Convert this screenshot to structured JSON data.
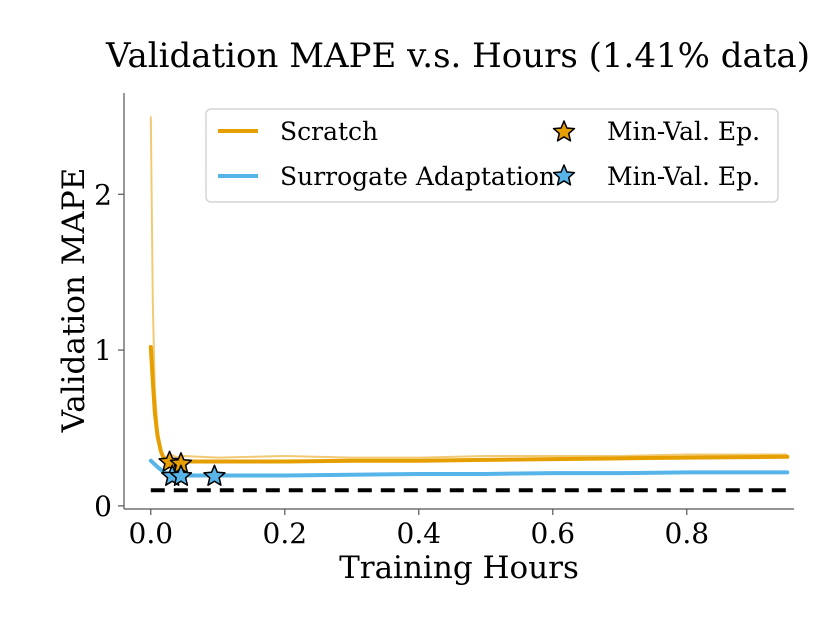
{
  "chart_data": {
    "type": "line",
    "title": "Validation MAPE v.s. Hours (1.41% data)",
    "xlabel": "Training Hours",
    "ylabel": "Validation MAPE",
    "xlim": [
      -0.04,
      0.96
    ],
    "ylim": [
      -0.02,
      2.65
    ],
    "xticks": [
      0.0,
      0.2,
      0.4,
      0.6,
      0.8
    ],
    "xtick_labels": [
      "0.0",
      "0.2",
      "0.4",
      "0.6",
      "0.8"
    ],
    "yticks": [
      0,
      1,
      2
    ],
    "ytick_labels": [
      "0",
      "1",
      "2"
    ],
    "grid": false,
    "legend_position": "top-right",
    "series": [
      {
        "name": "Scratch",
        "color": "#E69F00",
        "raw_points": [
          [
            0.0,
            2.5
          ],
          [
            0.003,
            1.3
          ],
          [
            0.006,
            0.75
          ],
          [
            0.01,
            0.5
          ],
          [
            0.015,
            0.36
          ],
          [
            0.02,
            0.31
          ],
          [
            0.03,
            0.33
          ],
          [
            0.04,
            0.31
          ],
          [
            0.05,
            0.32
          ],
          [
            0.1,
            0.31
          ],
          [
            0.2,
            0.32
          ],
          [
            0.3,
            0.31
          ],
          [
            0.4,
            0.31
          ],
          [
            0.5,
            0.32
          ],
          [
            0.6,
            0.32
          ],
          [
            0.7,
            0.32
          ],
          [
            0.8,
            0.33
          ],
          [
            0.95,
            0.33
          ]
        ],
        "smooth_points": [
          [
            0.0,
            1.02
          ],
          [
            0.003,
            0.8
          ],
          [
            0.006,
            0.6
          ],
          [
            0.01,
            0.45
          ],
          [
            0.015,
            0.35
          ],
          [
            0.02,
            0.3
          ],
          [
            0.03,
            0.29
          ],
          [
            0.05,
            0.285
          ],
          [
            0.1,
            0.285
          ],
          [
            0.2,
            0.285
          ],
          [
            0.3,
            0.29
          ],
          [
            0.4,
            0.29
          ],
          [
            0.5,
            0.295
          ],
          [
            0.6,
            0.3
          ],
          [
            0.7,
            0.305
          ],
          [
            0.8,
            0.31
          ],
          [
            0.95,
            0.315
          ]
        ]
      },
      {
        "name": "Surrogate Adaptation",
        "color": "#56B4E9",
        "smooth_points": [
          [
            0.0,
            0.29
          ],
          [
            0.01,
            0.25
          ],
          [
            0.02,
            0.215
          ],
          [
            0.03,
            0.2
          ],
          [
            0.05,
            0.195
          ],
          [
            0.1,
            0.195
          ],
          [
            0.2,
            0.195
          ],
          [
            0.3,
            0.2
          ],
          [
            0.4,
            0.205
          ],
          [
            0.5,
            0.205
          ],
          [
            0.6,
            0.21
          ],
          [
            0.7,
            0.21
          ],
          [
            0.8,
            0.215
          ],
          [
            0.95,
            0.215
          ]
        ]
      }
    ],
    "markers": [
      {
        "series": "Scratch",
        "label": "Min-Val. Ep.",
        "color": "#E69F00",
        "points": [
          [
            0.028,
            0.28
          ],
          [
            0.045,
            0.27
          ]
        ]
      },
      {
        "series": "Surrogate Adaptation",
        "label": "Min-Val. Ep.",
        "color": "#56B4E9",
        "points": [
          [
            0.032,
            0.19
          ],
          [
            0.045,
            0.19
          ],
          [
            0.095,
            0.19
          ]
        ]
      }
    ],
    "reference_line": {
      "y": 0.1,
      "style": "dashed",
      "color": "#000000"
    },
    "legend": {
      "entries": [
        {
          "label": "Scratch",
          "kind": "line",
          "color": "#E69F00"
        },
        {
          "label": "Min-Val. Ep.",
          "kind": "star",
          "color": "#E69F00"
        },
        {
          "label": "Surrogate Adaptation",
          "kind": "line",
          "color": "#56B4E9"
        },
        {
          "label": "Min-Val. Ep.",
          "kind": "star",
          "color": "#56B4E9"
        }
      ]
    }
  }
}
